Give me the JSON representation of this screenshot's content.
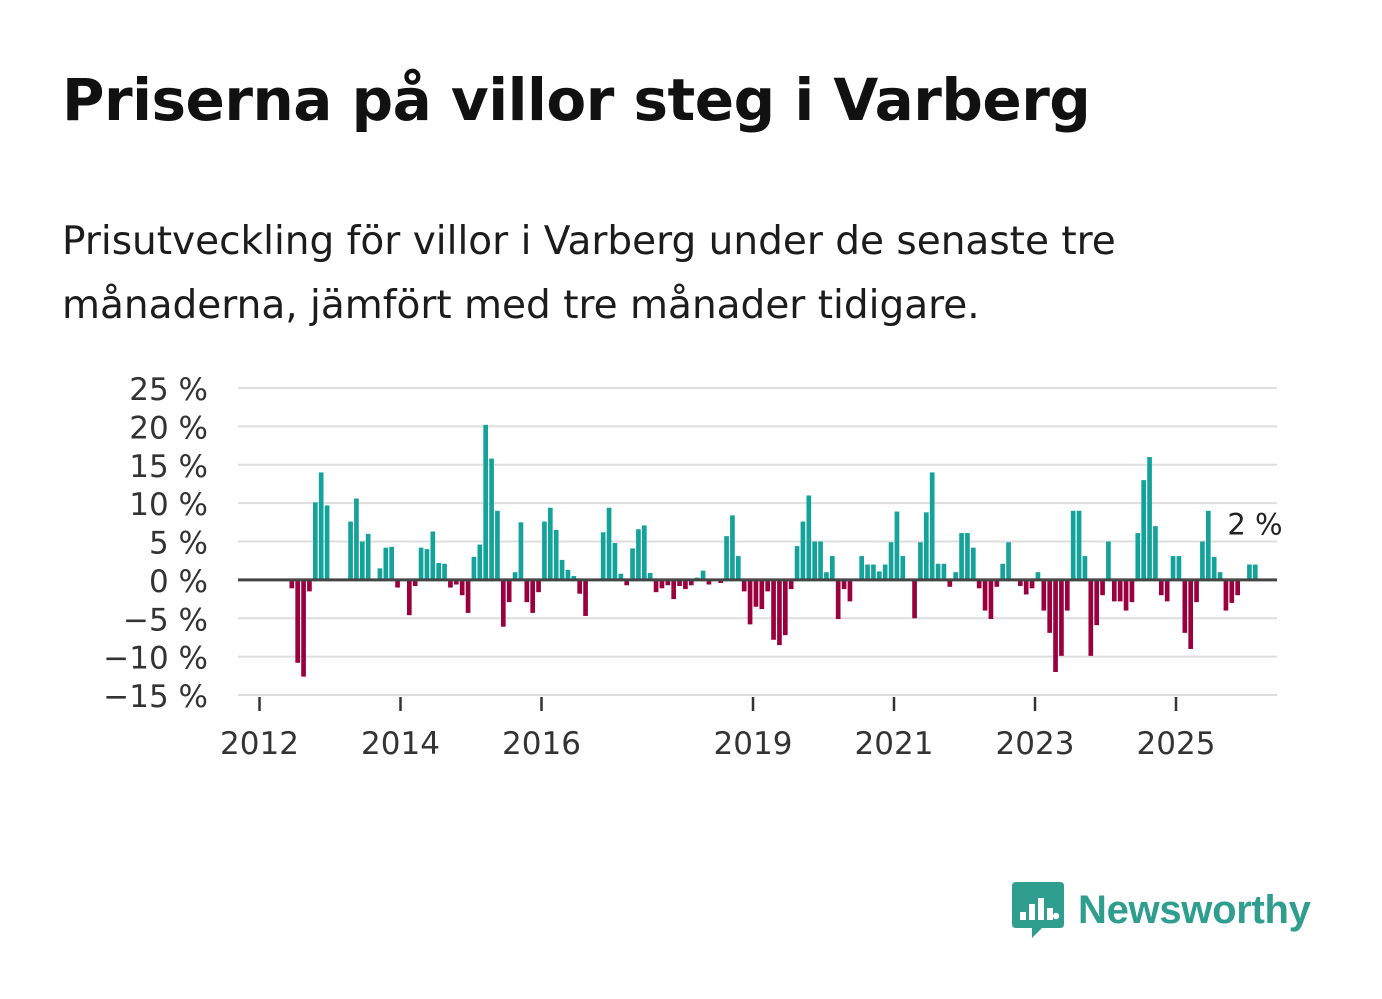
{
  "title": "Priserna på villor steg i Varberg",
  "subtitle": "Prisutveckling för villor i Varberg under de senaste tre månaderna, jämfört med tre månader tidigare.",
  "brand": {
    "name": "Newsworthy",
    "color": "#2f9e8f",
    "icon": "newsworthy-chat-bar-icon"
  },
  "chart_data": {
    "type": "bar",
    "title": "Priserna på villor steg i Varberg",
    "xlabel": "",
    "ylabel": "",
    "ylim": [
      -15,
      25
    ],
    "y_ticks": [
      25,
      20,
      15,
      10,
      5,
      0,
      -5,
      -10,
      -15
    ],
    "y_tick_labels": [
      "25 %",
      "20 %",
      "15 %",
      "10 %",
      "5 %",
      "0 %",
      "−5 %",
      "−10 %",
      "−15 %"
    ],
    "x_ticks": [
      2012,
      2014,
      2016,
      2019,
      2021,
      2023,
      2025
    ],
    "x_tick_labels": [
      "2012",
      "2014",
      "2016",
      "2019",
      "2021",
      "2023",
      "2025"
    ],
    "start": {
      "year": 2012,
      "month": 1
    },
    "unit": "%",
    "colors": {
      "positive": "#13a39a",
      "negative": "#99003d"
    },
    "last_label": "2 %",
    "values": [
      0,
      0,
      0,
      0,
      0,
      -1.1,
      -10.8,
      -12.6,
      -1.5,
      10.1,
      14,
      9.7,
      0,
      0,
      0,
      7.6,
      10.6,
      5,
      6,
      0,
      1.5,
      4.2,
      4.3,
      -1,
      0,
      -4.6,
      -0.8,
      4.2,
      4,
      6.3,
      2.2,
      2.1,
      -1,
      -0.6,
      -2,
      -4.3,
      3,
      4.6,
      20.2,
      15.8,
      9,
      -6.1,
      -2.9,
      1,
      7.5,
      -2.9,
      -4.3,
      -1.6,
      7.6,
      9.4,
      6.5,
      2.6,
      1.3,
      0.5,
      -1.8,
      -4.7,
      0,
      0,
      6.2,
      9.4,
      4.8,
      0.8,
      -0.7,
      4.1,
      6.6,
      7.1,
      0.9,
      -1.6,
      -1.1,
      -0.7,
      -2.5,
      -0.8,
      -1.2,
      -0.7,
      0.3,
      1.2,
      -0.6,
      0,
      -0.4,
      5.7,
      8.4,
      3.1,
      -1.5,
      -5.8,
      -3.5,
      -3.8,
      -1.5,
      -7.8,
      -8.5,
      -7.2,
      -1.2,
      4.4,
      7.6,
      11,
      5,
      5,
      1,
      3.1,
      -5.1,
      -1.2,
      -2.8,
      0,
      3.1,
      2,
      2,
      1.1,
      2,
      4.9,
      8.9,
      3.1,
      0,
      -5,
      4.9,
      8.8,
      14,
      2.1,
      2.1,
      -0.9,
      1,
      6.1,
      6.1,
      4.2,
      -1.1,
      -4,
      -5.1,
      -0.9,
      2.1,
      4.9,
      0,
      -0.8,
      -1.9,
      -1.1,
      1,
      -4,
      -6.9,
      -12,
      -9.9,
      -4,
      9,
      9,
      3.1,
      -9.9,
      -5.9,
      -2,
      5,
      -2.8,
      -2.8,
      -4,
      -2.9,
      6.1,
      13,
      16,
      7,
      -2,
      -2.8,
      3.1,
      3.1,
      -6.9,
      -9,
      -2.9,
      5,
      9,
      3,
      1,
      -4,
      -3,
      -2,
      0,
      2,
      2
    ]
  }
}
